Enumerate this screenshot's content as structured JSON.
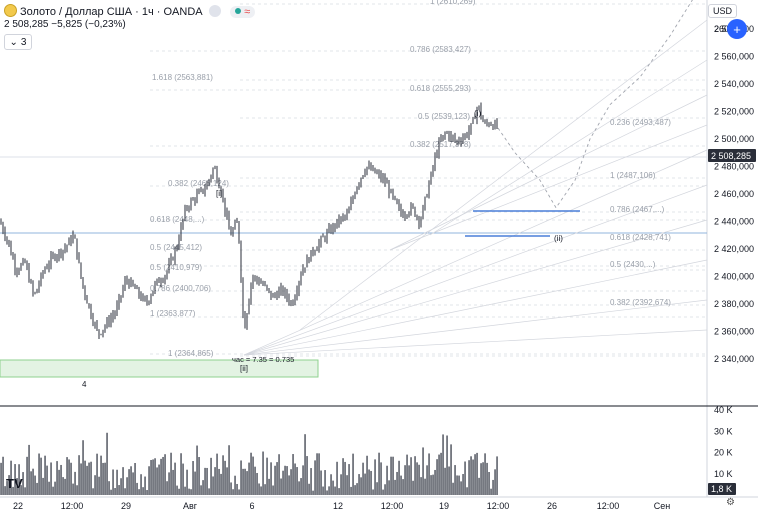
{
  "header": {
    "symbol": "Золото / Доллар США · 1ч · OANDA",
    "price_line": "2 508,285  −5,825 (−0,23%)",
    "indicators_count": "3",
    "currency": "USD",
    "add_button": "+"
  },
  "price_axis": {
    "ticks": [
      "2 580,000",
      "2 560,000",
      "2 540,000",
      "2 520,000",
      "2 500,000",
      "2 480,000",
      "2 460,000",
      "2 440,000",
      "2 420,000",
      "2 400,000",
      "2 380,000",
      "2 360,000",
      "2 340,000"
    ],
    "current_price": "2 508,285",
    "partial_top": "260"
  },
  "volume_axis": {
    "ticks": [
      "40 K",
      "30 K",
      "20 K",
      "10 K"
    ],
    "current": "1,8 K"
  },
  "time_axis": [
    "22",
    "12:00",
    "29",
    "Авг",
    "6",
    "12",
    "12:00",
    "19",
    "12:00",
    "26",
    "12:00",
    "Сен"
  ],
  "fib_labels": [
    "1 (2610,269)",
    "0.786 (2583,427)",
    "1.618 (2563,881)",
    "0.618 (2555,293)",
    "0.5 (2539,123)",
    "0.382 (2517,378)",
    "0.236 (2493,487)",
    "1 (2487,106)",
    "0.382 (2466,124)",
    "0.786 (2467,...)",
    "0.618 (2448,...)",
    "0.5 (2445,412)",
    "0.618 (2428,741)",
    "0.5 (2430,...)",
    "0.5 (2410,979)",
    "0.786 (2400,706)",
    "0.382 (2392,674)",
    "1 (2363,877)",
    "1 (2364,865)"
  ],
  "wave_labels": [
    "[i]",
    "(i)",
    "(ii)",
    "[ii]",
    "4"
  ],
  "annotation": "час = 7.35 = 0.735",
  "colors": {
    "candle": "#2a2e39",
    "accent_blue": "#2962ff",
    "horizontal_line": "#90b4dc",
    "zone_fill": "#e3f3e3",
    "zone_border": "#8fd18f",
    "fib": "#9aa0aa"
  },
  "chart_data": {
    "type": "candlestick",
    "y_range": [
      2330,
      2620
    ],
    "volume_range": [
      0,
      40000
    ],
    "close_path": [
      [
        0,
        2440
      ],
      [
        8,
        2425
      ],
      [
        16,
        2405
      ],
      [
        25,
        2410
      ],
      [
        34,
        2385
      ],
      [
        44,
        2405
      ],
      [
        54,
        2415
      ],
      [
        64,
        2420
      ],
      [
        74,
        2430
      ],
      [
        82,
        2395
      ],
      [
        90,
        2375
      ],
      [
        98,
        2358
      ],
      [
        106,
        2365
      ],
      [
        116,
        2375
      ],
      [
        126,
        2398
      ],
      [
        136,
        2390
      ],
      [
        146,
        2380
      ],
      [
        156,
        2395
      ],
      [
        166,
        2402
      ],
      [
        176,
        2420
      ],
      [
        186,
        2450
      ],
      [
        196,
        2458
      ],
      [
        206,
        2465
      ],
      [
        214,
        2480
      ],
      [
        222,
        2460
      ],
      [
        230,
        2430
      ],
      [
        238,
        2440
      ],
      [
        244,
        2360
      ],
      [
        252,
        2400
      ],
      [
        262,
        2395
      ],
      [
        272,
        2385
      ],
      [
        282,
        2390
      ],
      [
        292,
        2380
      ],
      [
        302,
        2405
      ],
      [
        314,
        2420
      ],
      [
        326,
        2430
      ],
      [
        338,
        2440
      ],
      [
        348,
        2445
      ],
      [
        356,
        2465
      ],
      [
        366,
        2480
      ],
      [
        376,
        2475
      ],
      [
        386,
        2468
      ],
      [
        394,
        2455
      ],
      [
        402,
        2445
      ],
      [
        412,
        2450
      ],
      [
        420,
        2440
      ],
      [
        430,
        2470
      ],
      [
        438,
        2495
      ],
      [
        446,
        2505
      ],
      [
        456,
        2498
      ],
      [
        466,
        2503
      ],
      [
        472,
        2510
      ],
      [
        478,
        2525
      ],
      [
        484,
        2510
      ],
      [
        490,
        2512
      ],
      [
        498,
        2508
      ]
    ],
    "projection_path": [
      [
        498,
        2508
      ],
      [
        515,
        2490
      ],
      [
        540,
        2470
      ],
      [
        556,
        2450
      ],
      [
        575,
        2470
      ],
      [
        590,
        2500
      ],
      [
        610,
        2525
      ],
      [
        640,
        2545
      ],
      [
        670,
        2575
      ],
      [
        700,
        2610
      ]
    ]
  }
}
